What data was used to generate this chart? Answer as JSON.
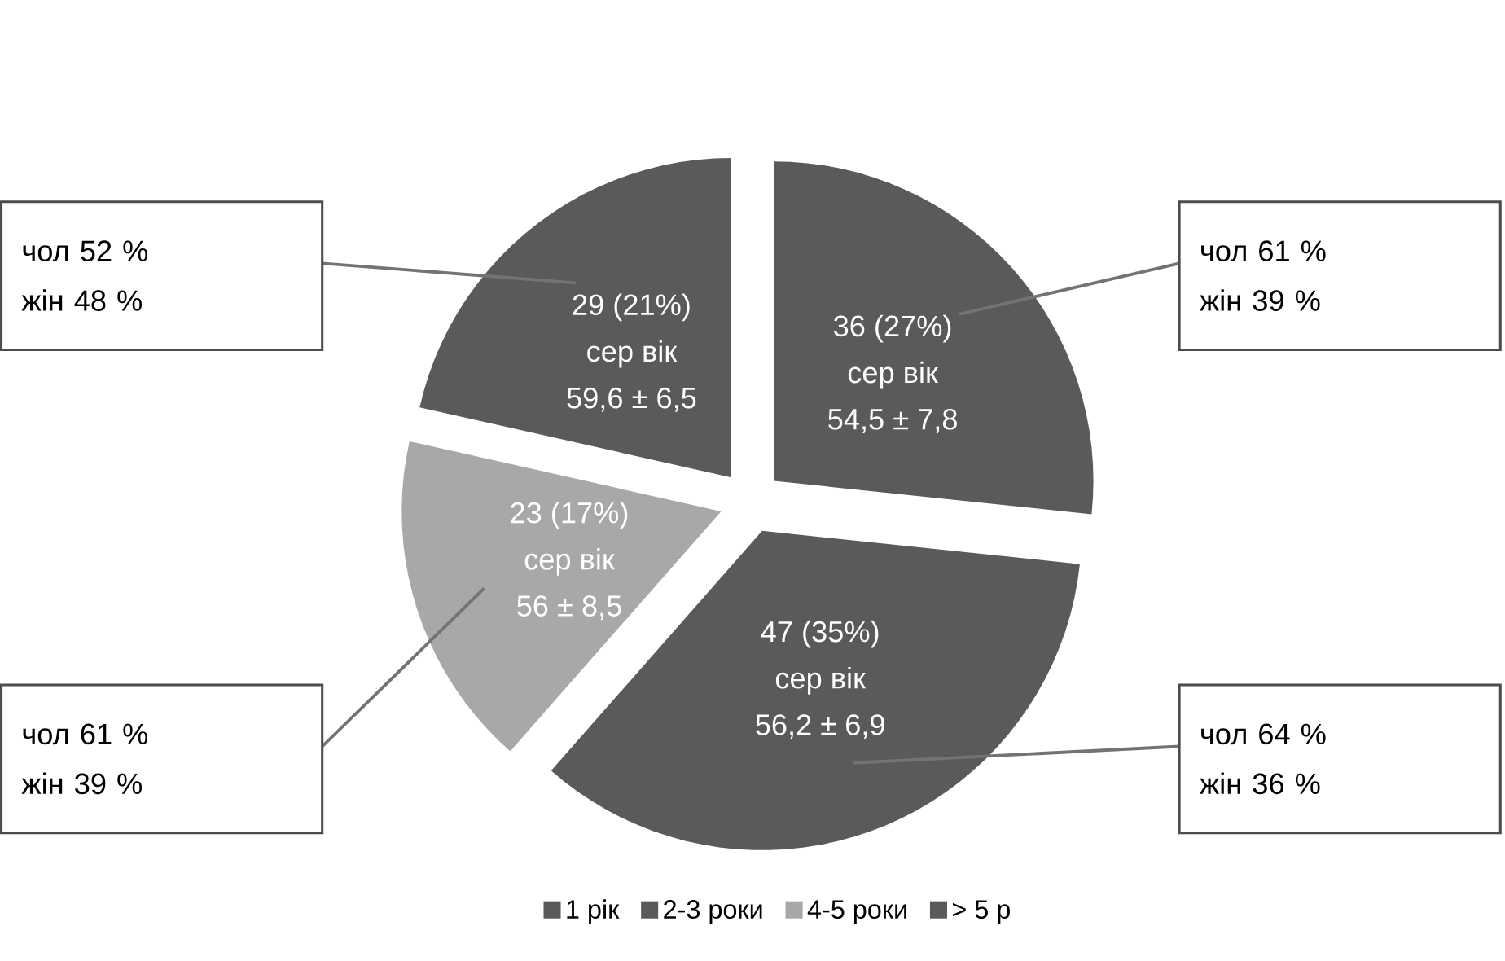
{
  "chart_data": {
    "type": "pie",
    "categories": [
      "1 рік",
      "2-3 роки",
      "4-5 роки",
      "> 5 р"
    ],
    "values": [
      36,
      47,
      23,
      29
    ],
    "colors": [
      "#5a5a5a",
      "#5a5a5a",
      "#a8a8a8",
      "#5a5a5a"
    ],
    "value_labels": [
      "36 (27%)",
      "47 (35%)",
      "23 (17%)",
      "29 (21%)"
    ],
    "annotations": [
      {
        "text": "сер вік",
        "x": "1 рік"
      },
      {
        "text": "54,5 ± 7,8",
        "x": "1 рік"
      },
      {
        "text": "чол 61 %",
        "x": "1 рік"
      },
      {
        "text": "жін 39 %",
        "x": "1 рік"
      },
      {
        "text": "сер вік",
        "x": "2-3 роки"
      },
      {
        "text": "56,2 ± 6,9",
        "x": "2-3 роки"
      },
      {
        "text": "чол 64 %",
        "x": "2-3 роки"
      },
      {
        "text": "жін 36 %",
        "x": "2-3 роки"
      },
      {
        "text": "сер вік",
        "x": "4-5 роки"
      },
      {
        "text": "56 ± 8,5",
        "x": "4-5 роки"
      },
      {
        "text": "чол 61 %",
        "x": "4-5 роки"
      },
      {
        "text": "жін 39 %",
        "x": "4-5 роки"
      },
      {
        "text": "сер вік",
        "x": "> 5 р"
      },
      {
        "text": "59,6 ± 6,5",
        "x": "> 5 р"
      },
      {
        "text": "чол 52 %",
        "x": "> 5 р"
      },
      {
        "text": "жін 48 %",
        "x": "> 5 р"
      }
    ],
    "legend": "bottom"
  }
}
